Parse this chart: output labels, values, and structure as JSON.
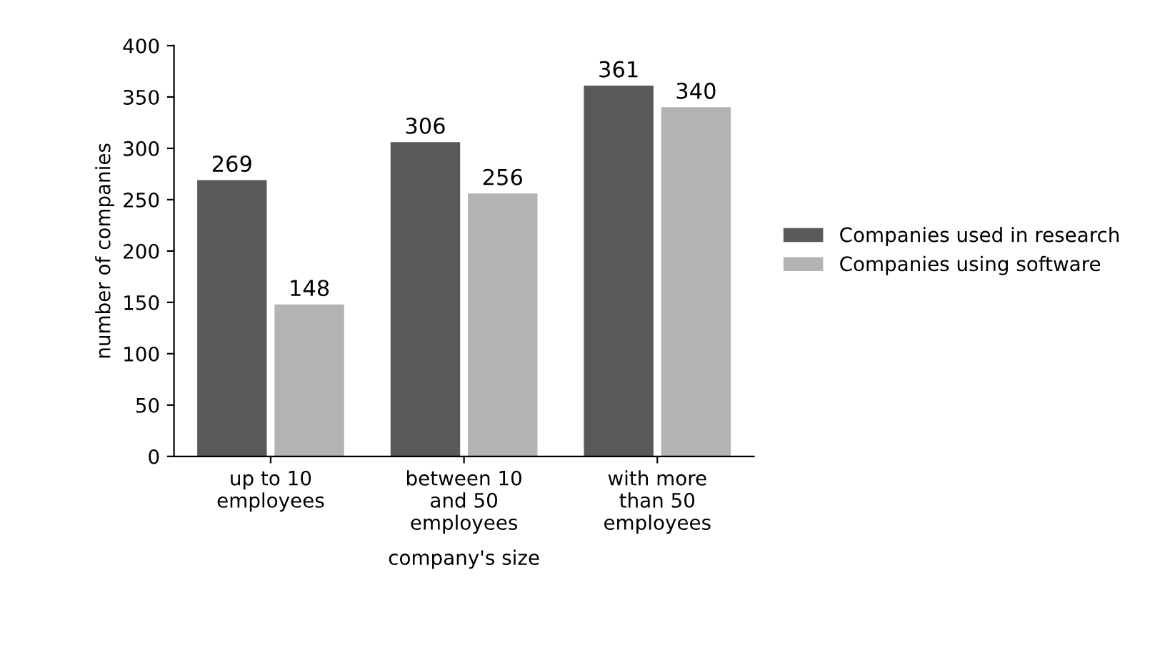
{
  "chart_data": {
    "type": "bar",
    "categories": [
      "up to 10\nemployees",
      "between 10\nand 50\nemployees",
      "with more\nthan 50\nemployees"
    ],
    "series": [
      {
        "name": "Companies used in research",
        "color": "#595959",
        "values": [
          269,
          306,
          361
        ]
      },
      {
        "name": "Companies using software",
        "color": "#b3b3b3",
        "values": [
          148,
          256,
          340
        ]
      }
    ],
    "xlabel": "company's size",
    "ylabel": "number of companies",
    "ylim": [
      0,
      400
    ],
    "yticks": [
      0,
      50,
      100,
      150,
      200,
      250,
      300,
      350,
      400
    ],
    "data_labels": true,
    "legend": "right",
    "grid": false
  }
}
